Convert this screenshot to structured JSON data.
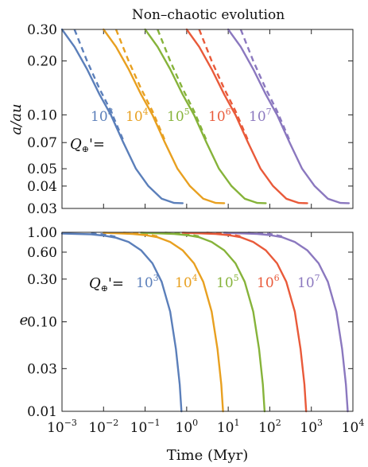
{
  "chart_data": [
    {
      "type": "line",
      "title": "Non–chaotic evolution",
      "xlabel": "",
      "ylabel": "a/au",
      "xscale": "log",
      "yscale": "log",
      "xlim": [
        0.001,
        10000
      ],
      "ylim": [
        0.03,
        0.3
      ],
      "yticks": [
        "0.30",
        "0.20",
        "0.10",
        "0.07",
        "0.05",
        "0.04",
        "0.03"
      ],
      "ytick_values": [
        0.3,
        0.2,
        0.1,
        0.07,
        0.05,
        0.04,
        0.03
      ],
      "annotation_prefix": "Q",
      "annotation_sub": "⊕",
      "annotation_suffix": "'=",
      "series": [
        {
          "label_base": "10",
          "label_exp": "3",
          "color": "#5b7fba",
          "solid": [
            [
              0.001,
              0.3
            ],
            [
              0.002,
              0.24
            ],
            [
              0.004,
              0.18
            ],
            [
              0.008,
              0.13
            ],
            [
              0.015,
              0.1
            ],
            [
              0.03,
              0.07
            ],
            [
              0.06,
              0.05
            ],
            [
              0.12,
              0.04
            ],
            [
              0.25,
              0.034
            ],
            [
              0.5,
              0.0322
            ],
            [
              0.8,
              0.0321
            ]
          ],
          "dashed": [
            [
              0.002,
              0.3
            ],
            [
              0.004,
              0.2
            ],
            [
              0.008,
              0.14
            ],
            [
              0.015,
              0.105
            ],
            [
              0.03,
              0.072
            ]
          ]
        },
        {
          "label_base": "10",
          "label_exp": "4",
          "color": "#e8a020",
          "solid": [
            [
              0.01,
              0.3
            ],
            [
              0.02,
              0.24
            ],
            [
              0.04,
              0.18
            ],
            [
              0.08,
              0.13
            ],
            [
              0.15,
              0.1
            ],
            [
              0.3,
              0.07
            ],
            [
              0.6,
              0.05
            ],
            [
              1.2,
              0.04
            ],
            [
              2.5,
              0.034
            ],
            [
              5,
              0.0322
            ],
            [
              8,
              0.0321
            ]
          ],
          "dashed": [
            [
              0.02,
              0.3
            ],
            [
              0.04,
              0.2
            ],
            [
              0.08,
              0.14
            ],
            [
              0.15,
              0.105
            ],
            [
              0.3,
              0.072
            ]
          ]
        },
        {
          "label_base": "10",
          "label_exp": "5",
          "color": "#86b33a",
          "solid": [
            [
              0.1,
              0.3
            ],
            [
              0.2,
              0.24
            ],
            [
              0.4,
              0.18
            ],
            [
              0.8,
              0.13
            ],
            [
              1.5,
              0.1
            ],
            [
              3,
              0.07
            ],
            [
              6,
              0.05
            ],
            [
              12,
              0.04
            ],
            [
              25,
              0.034
            ],
            [
              50,
              0.0322
            ],
            [
              80,
              0.0321
            ]
          ],
          "dashed": [
            [
              0.2,
              0.3
            ],
            [
              0.4,
              0.2
            ],
            [
              0.8,
              0.14
            ],
            [
              1.5,
              0.105
            ],
            [
              3,
              0.072
            ]
          ]
        },
        {
          "label_base": "10",
          "label_exp": "6",
          "color": "#e95a3a",
          "solid": [
            [
              1,
              0.3
            ],
            [
              2,
              0.24
            ],
            [
              4,
              0.18
            ],
            [
              8,
              0.13
            ],
            [
              15,
              0.1
            ],
            [
              30,
              0.07
            ],
            [
              60,
              0.05
            ],
            [
              120,
              0.04
            ],
            [
              250,
              0.034
            ],
            [
              500,
              0.0322
            ],
            [
              800,
              0.0321
            ]
          ],
          "dashed": [
            [
              2,
              0.3
            ],
            [
              4,
              0.2
            ],
            [
              8,
              0.14
            ],
            [
              15,
              0.105
            ],
            [
              30,
              0.072
            ]
          ]
        },
        {
          "label_base": "10",
          "label_exp": "7",
          "color": "#8b78bf",
          "solid": [
            [
              10,
              0.3
            ],
            [
              20,
              0.24
            ],
            [
              40,
              0.18
            ],
            [
              80,
              0.13
            ],
            [
              150,
              0.1
            ],
            [
              300,
              0.07
            ],
            [
              600,
              0.05
            ],
            [
              1200,
              0.04
            ],
            [
              2500,
              0.034
            ],
            [
              5000,
              0.0322
            ],
            [
              8000,
              0.0321
            ]
          ],
          "dashed": [
            [
              20,
              0.3
            ],
            [
              40,
              0.2
            ],
            [
              80,
              0.14
            ],
            [
              150,
              0.105
            ],
            [
              300,
              0.072
            ]
          ]
        }
      ]
    },
    {
      "type": "line",
      "title": "",
      "xlabel": "Time (Myr)",
      "ylabel": "e",
      "xscale": "log",
      "yscale": "log",
      "xlim": [
        0.001,
        10000
      ],
      "ylim": [
        0.01,
        1.0
      ],
      "yticks": [
        "1.00",
        "0.60",
        "0.30",
        "0.10",
        "0.03",
        "0.01"
      ],
      "ytick_values": [
        1.0,
        0.6,
        0.3,
        0.1,
        0.03,
        0.01
      ],
      "xtick_base": "10",
      "xtick_exps": [
        "−3",
        "−2",
        "−1",
        "0",
        "1",
        "2",
        "3",
        "4"
      ],
      "xtick_values": [
        0.001,
        0.01,
        0.1,
        1,
        10,
        100,
        1000,
        10000
      ],
      "annotation_prefix": "Q",
      "annotation_sub": "⊕",
      "annotation_suffix": "'=",
      "series": [
        {
          "label_base": "10",
          "label_exp": "3",
          "color": "#5b7fba",
          "solid": [
            [
              0.001,
              0.97
            ],
            [
              0.005,
              0.95
            ],
            [
              0.01,
              0.92
            ],
            [
              0.02,
              0.87
            ],
            [
              0.04,
              0.78
            ],
            [
              0.08,
              0.63
            ],
            [
              0.15,
              0.45
            ],
            [
              0.25,
              0.28
            ],
            [
              0.4,
              0.13
            ],
            [
              0.55,
              0.05
            ],
            [
              0.68,
              0.02
            ],
            [
              0.75,
              0.01
            ]
          ],
          "dashed": [
            [
              0.005,
              0.97
            ],
            [
              0.01,
              0.95
            ],
            [
              0.02,
              0.89
            ]
          ]
        },
        {
          "label_base": "10",
          "label_exp": "4",
          "color": "#e8a020",
          "solid": [
            [
              0.01,
              0.99
            ],
            [
              0.05,
              0.96
            ],
            [
              0.1,
              0.93
            ],
            [
              0.2,
              0.88
            ],
            [
              0.4,
              0.78
            ],
            [
              0.8,
              0.63
            ],
            [
              1.5,
              0.45
            ],
            [
              2.5,
              0.28
            ],
            [
              4,
              0.13
            ],
            [
              5.5,
              0.05
            ],
            [
              6.8,
              0.02
            ],
            [
              7.5,
              0.01
            ]
          ],
          "dashed": [
            [
              0.03,
              0.99
            ],
            [
              0.1,
              0.96
            ],
            [
              0.2,
              0.9
            ]
          ]
        },
        {
          "label_base": "10",
          "label_exp": "5",
          "color": "#86b33a",
          "solid": [
            [
              0.08,
              0.99
            ],
            [
              0.5,
              0.96
            ],
            [
              1,
              0.93
            ],
            [
              2,
              0.88
            ],
            [
              4,
              0.78
            ],
            [
              8,
              0.63
            ],
            [
              15,
              0.45
            ],
            [
              25,
              0.28
            ],
            [
              40,
              0.13
            ],
            [
              55,
              0.05
            ],
            [
              68,
              0.02
            ],
            [
              75,
              0.01
            ]
          ],
          "dashed": [
            [
              0.3,
              0.99
            ],
            [
              1,
              0.96
            ],
            [
              2,
              0.9
            ]
          ]
        },
        {
          "label_base": "10",
          "label_exp": "6",
          "color": "#e95a3a",
          "solid": [
            [
              0.8,
              0.99
            ],
            [
              5,
              0.96
            ],
            [
              10,
              0.93
            ],
            [
              20,
              0.88
            ],
            [
              40,
              0.78
            ],
            [
              80,
              0.63
            ],
            [
              150,
              0.45
            ],
            [
              250,
              0.28
            ],
            [
              400,
              0.13
            ],
            [
              550,
              0.05
            ],
            [
              680,
              0.02
            ],
            [
              750,
              0.01
            ]
          ],
          "dashed": [
            [
              3,
              0.99
            ],
            [
              10,
              0.96
            ],
            [
              20,
              0.9
            ]
          ]
        },
        {
          "label_base": "10",
          "label_exp": "7",
          "color": "#8b78bf",
          "solid": [
            [
              8,
              0.99
            ],
            [
              50,
              0.96
            ],
            [
              100,
              0.93
            ],
            [
              200,
              0.88
            ],
            [
              400,
              0.78
            ],
            [
              800,
              0.63
            ],
            [
              1500,
              0.45
            ],
            [
              2500,
              0.28
            ],
            [
              4000,
              0.13
            ],
            [
              5500,
              0.05
            ],
            [
              6800,
              0.02
            ],
            [
              7500,
              0.01
            ]
          ],
          "dashed": [
            [
              30,
              0.99
            ],
            [
              100,
              0.96
            ],
            [
              200,
              0.9
            ]
          ]
        }
      ]
    }
  ]
}
